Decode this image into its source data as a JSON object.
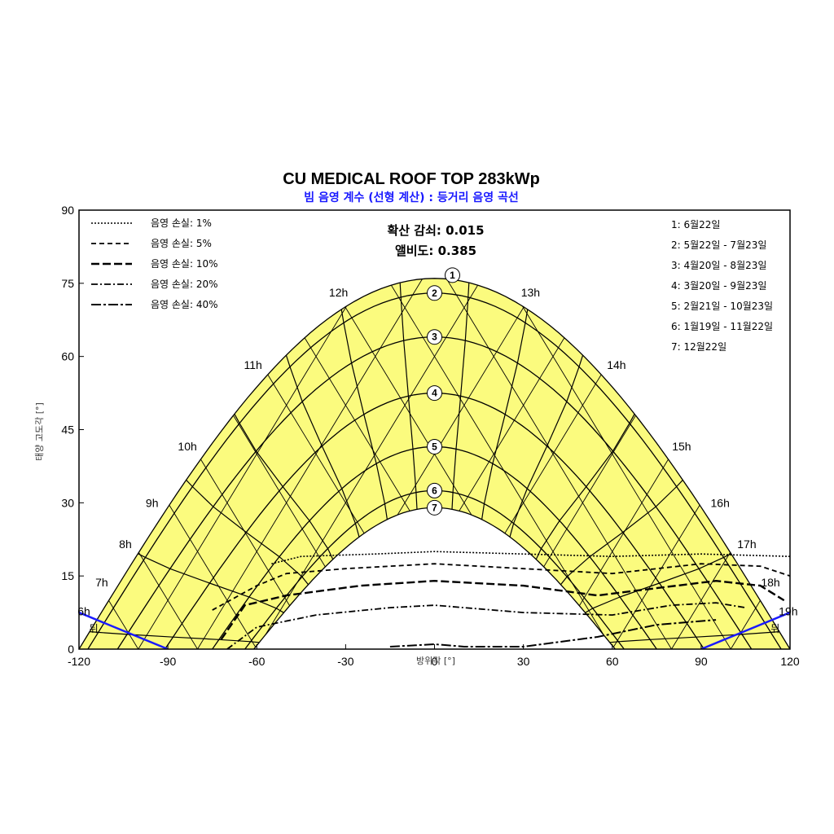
{
  "colors": {
    "sun_band": "#fbfb7e",
    "frame": "#000000",
    "horizon": "#1a1aff",
    "subtitle": "#1a1aff"
  },
  "chart_data": {
    "type": "line",
    "title": "CU MEDICAL ROOF TOP 283kWp",
    "subtitle": "빔 음영 계수 (선형 계산) : 등거리 음영 곡선",
    "xlabel": "방위각 [°]",
    "ylabel": "태양 고도각 [°]",
    "xlim": [
      -120,
      120
    ],
    "ylim": [
      0,
      90
    ],
    "x_ticks": [
      "-120",
      "-90",
      "-60",
      "-30",
      "0",
      "30",
      "60",
      "90",
      "120"
    ],
    "y_ticks": [
      "0",
      "15",
      "30",
      "45",
      "60",
      "75",
      "90"
    ],
    "info": {
      "diffuse": "확산 감쇠: 0.015",
      "albedo": "앨비도: 0.385"
    },
    "shading_legend": [
      {
        "label": "음영 손실: 1%",
        "dash": "2,2",
        "width": 1.6
      },
      {
        "label": "음영 손실: 5%",
        "dash": "6,4",
        "width": 1.8
      },
      {
        "label": "음영 손실: 10%",
        "dash": "10,4",
        "width": 2.4
      },
      {
        "label": "음영 손실: 20%",
        "dash": "8,3,2,3",
        "width": 1.8
      },
      {
        "label": "음영 손실: 40%",
        "dash": "12,3,3,3",
        "width": 2.0
      }
    ],
    "date_legend": [
      "1: 6월22일",
      "2: 5월22일 - 7월23일",
      "3: 4월20일 - 8월23일",
      "4: 3월20일 - 9월23일",
      "5: 2월21일 - 10월23일",
      "6: 1월19일 - 11월22일",
      "7: 12월22일"
    ],
    "sun_paths": [
      {
        "id": "1",
        "max_alt": 76,
        "sunrise_az": -120
      },
      {
        "id": "2",
        "max_alt": 73,
        "sunrise_az": -117
      },
      {
        "id": "3",
        "max_alt": 64,
        "sunrise_az": -107
      },
      {
        "id": "4",
        "max_alt": 52.5,
        "sunrise_az": -91
      },
      {
        "id": "5",
        "max_alt": 41.5,
        "sunrise_az": -75
      },
      {
        "id": "6",
        "max_alt": 32.5,
        "sunrise_az": -64
      },
      {
        "id": "7",
        "max_alt": 29,
        "sunrise_az": -61
      }
    ],
    "hour_labels": [
      {
        "label": "6h",
        "az": -114,
        "alt": 19
      },
      {
        "label": "7h",
        "az": -108,
        "alt": 43
      },
      {
        "label": "8h",
        "az": -100,
        "alt": 66
      },
      {
        "label": "9h",
        "az": -91,
        "alt": 90
      },
      {
        "label": "10h",
        "az": -78,
        "alt": 115
      },
      {
        "label": "11h",
        "az": -56,
        "alt": 140
      },
      {
        "label": "12h",
        "az": -27,
        "alt": 157
      },
      {
        "label": "13h",
        "az": 27,
        "alt": 157
      },
      {
        "label": "14h",
        "az": 56,
        "alt": 140
      },
      {
        "label": "15h",
        "az": 78,
        "alt": 115
      },
      {
        "label": "16h",
        "az": 91,
        "alt": 90
      },
      {
        "label": "17h",
        "az": 100,
        "alt": 66
      },
      {
        "label": "18h",
        "az": 108,
        "alt": 43
      },
      {
        "label": "19h",
        "az": 114,
        "alt": 19
      }
    ],
    "horizon_markers": [
      {
        "label": "뒤",
        "side": "left"
      },
      {
        "label": "뒤",
        "side": "right"
      }
    ],
    "iso_shading_curves": [
      {
        "level": "1%",
        "points": [
          [
            -55,
            17.5
          ],
          [
            -45,
            19
          ],
          [
            -20,
            19.5
          ],
          [
            0,
            20
          ],
          [
            30,
            19.5
          ],
          [
            60,
            19
          ],
          [
            90,
            19.5
          ],
          [
            120,
            19
          ]
        ]
      },
      {
        "level": "5%",
        "points": [
          [
            -75,
            8
          ],
          [
            -60,
            13
          ],
          [
            -50,
            15.5
          ],
          [
            -30,
            16.5
          ],
          [
            0,
            17.5
          ],
          [
            30,
            16.5
          ],
          [
            60,
            15.5
          ],
          [
            75,
            16.5
          ],
          [
            90,
            17.5
          ],
          [
            110,
            17
          ],
          [
            120,
            15
          ]
        ]
      },
      {
        "level": "10%",
        "points": [
          [
            -72,
            2
          ],
          [
            -64,
            9
          ],
          [
            -50,
            11
          ],
          [
            -25,
            13
          ],
          [
            0,
            14
          ],
          [
            30,
            13
          ],
          [
            55,
            11
          ],
          [
            75,
            12.5
          ],
          [
            95,
            14
          ],
          [
            110,
            13
          ],
          [
            118,
            10
          ]
        ]
      },
      {
        "level": "20%",
        "points": [
          [
            -70,
            0
          ],
          [
            -60,
            4.5
          ],
          [
            -40,
            7
          ],
          [
            -15,
            8.5
          ],
          [
            0,
            9
          ],
          [
            30,
            7.5
          ],
          [
            60,
            7
          ],
          [
            80,
            9
          ],
          [
            95,
            9.5
          ],
          [
            105,
            8.5
          ]
        ]
      },
      {
        "level": "40%",
        "points": [
          [
            -15,
            0.5
          ],
          [
            0,
            1
          ],
          [
            10,
            0.5
          ],
          [
            30,
            0.5
          ],
          [
            55,
            2.5
          ],
          [
            75,
            5
          ],
          [
            95,
            6
          ]
        ]
      }
    ]
  }
}
